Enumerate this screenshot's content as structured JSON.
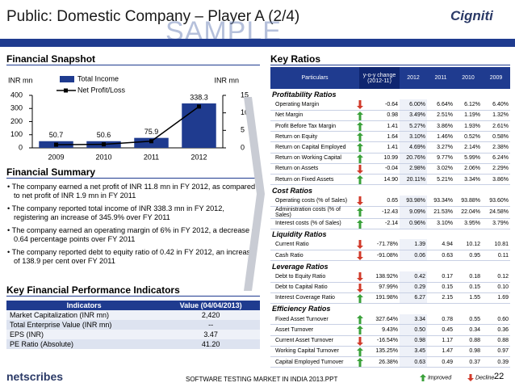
{
  "header": {
    "title": "Public: Domestic Company – Player A (2/4)",
    "watermark": "SAMPLE",
    "logo": "Cigniti"
  },
  "snapshot": {
    "title": "Financial Snapshot"
  },
  "chart_data": {
    "type": "bar",
    "categories": [
      "2009",
      "2010",
      "2011",
      "2012"
    ],
    "series": [
      {
        "name": "Total Income",
        "color": "#1f3b8f",
        "values": [
          50.7,
          50.6,
          75.9,
          338.3
        ]
      },
      {
        "name": "Net Profit/Loss",
        "color": "#000000",
        "type": "line",
        "axis": "y2",
        "values": [
          0.9,
          1.0,
          1.9,
          11.8
        ]
      }
    ],
    "ylabel": "INR mn",
    "y2label": "INR mn",
    "ylim": [
      0,
      400
    ],
    "yticks": [
      0,
      100,
      200,
      300,
      400
    ],
    "y2lim": [
      0,
      15
    ],
    "y2ticks": [
      0,
      5,
      10,
      15
    ],
    "legend": "top"
  },
  "summary": {
    "title": "Financial Summary",
    "bullets": [
      "The company earned a net profit of INR 11.8 mn in FY 2012, as compared to net profit of INR 1.9 mn in FY 2011",
      "The company reported total income of INR 338.3 mn in FY 2012, registering an increase of 345.9% over FY 2011",
      "The company earned an operating margin of 6% in FY 2012, a decrease of 0.64 percentage points over FY 2011",
      "The company reported debt to equity ratio of 0.42 in FY 2012, an increase of 138.9 per cent over FY 2011"
    ]
  },
  "kpi": {
    "title": "Key Financial Performance Indicators",
    "columns": [
      "Indicators",
      "Value (04/04/2013)"
    ],
    "rows": [
      [
        "Market Capitalization (INR mn)",
        "2,420"
      ],
      [
        "Total Enterprise Value (INR mn)",
        "--"
      ],
      [
        "EPS (INR)",
        "3.47"
      ],
      [
        "PE Ratio (Absolute)",
        "41.20"
      ]
    ]
  },
  "ratios": {
    "title": "Key Ratios",
    "columns": [
      "Particulars",
      "y-o-y change (2012-11)",
      "2012",
      "2011",
      "2010",
      "2009"
    ],
    "sections": [
      {
        "title": "Profitability Ratios",
        "rows": [
          {
            "name": "Operating Margin",
            "trend": "decline",
            "change": "-0.64",
            "values": [
              "6.00%",
              "6.64%",
              "6.12%",
              "6.40%"
            ]
          },
          {
            "name": "Net Margin",
            "trend": "improved",
            "change": "0.98",
            "values": [
              "3.49%",
              "2.51%",
              "1.19%",
              "1.32%"
            ]
          },
          {
            "name": "Profit Before Tax Margin",
            "trend": "improved",
            "change": "1.41",
            "values": [
              "5.27%",
              "3.86%",
              "1.93%",
              "2.61%"
            ]
          },
          {
            "name": "Return on Equity",
            "trend": "improved",
            "change": "1.64",
            "values": [
              "3.10%",
              "1.46%",
              "0.52%",
              "0.58%"
            ]
          },
          {
            "name": "Return on Capital Employed",
            "trend": "improved",
            "change": "1.41",
            "values": [
              "4.69%",
              "3.27%",
              "2.14%",
              "2.38%"
            ]
          },
          {
            "name": "Return on Working Capital",
            "trend": "improved",
            "change": "10.99",
            "values": [
              "20.76%",
              "9.77%",
              "5.99%",
              "6.24%"
            ]
          },
          {
            "name": "Return on Assets",
            "trend": "decline",
            "change": "-0.04",
            "values": [
              "2.98%",
              "3.02%",
              "2.06%",
              "2.29%"
            ]
          },
          {
            "name": "Return on Fixed Assets",
            "trend": "improved",
            "change": "14.90",
            "values": [
              "20.11%",
              "5.21%",
              "3.34%",
              "3.86%"
            ]
          }
        ]
      },
      {
        "title": "Cost Ratios",
        "rows": [
          {
            "name": "Operating costs (% of Sales)",
            "trend": "decline",
            "change": "0.65",
            "values": [
              "93.98%",
              "93.34%",
              "93.88%",
              "93.60%"
            ]
          },
          {
            "name": "Administration costs (% of Sales)",
            "trend": "improved",
            "change": "-12.43",
            "values": [
              "9.09%",
              "21.53%",
              "22.04%",
              "24.58%"
            ]
          },
          {
            "name": "Interest costs (% of Sales)",
            "trend": "improved",
            "change": "-2.14",
            "values": [
              "0.96%",
              "3.10%",
              "3.95%",
              "3.79%"
            ]
          }
        ]
      },
      {
        "title": "Liquidity Ratios",
        "rows": [
          {
            "name": "Current Ratio",
            "trend": "decline",
            "change": "-71.78%",
            "values": [
              "1.39",
              "4.94",
              "10.12",
              "10.81"
            ]
          },
          {
            "name": "Cash Ratio",
            "trend": "decline",
            "change": "-91.08%",
            "values": [
              "0.06",
              "0.63",
              "0.95",
              "0.11"
            ]
          }
        ]
      },
      {
        "title": "Leverage Ratios",
        "rows": [
          {
            "name": "Debt to Equity Ratio",
            "trend": "decline",
            "change": "138.92%",
            "values": [
              "0.42",
              "0.17",
              "0.18",
              "0.12"
            ]
          },
          {
            "name": "Debt to Capital Ratio",
            "trend": "decline",
            "change": "97.99%",
            "values": [
              "0.29",
              "0.15",
              "0.15",
              "0.10"
            ]
          },
          {
            "name": "Interest Coverage Ratio",
            "trend": "improved",
            "change": "191.98%",
            "values": [
              "6.27",
              "2.15",
              "1.55",
              "1.69"
            ]
          }
        ]
      },
      {
        "title": "Efficiency Ratios",
        "rows": [
          {
            "name": "Fixed Asset Turnover",
            "trend": "improved",
            "change": "327.64%",
            "values": [
              "3.34",
              "0.78",
              "0.55",
              "0.60"
            ]
          },
          {
            "name": "Asset Turnover",
            "trend": "improved",
            "change": "9.43%",
            "values": [
              "0.50",
              "0.45",
              "0.34",
              "0.36"
            ]
          },
          {
            "name": "Current Asset Turnover",
            "trend": "decline",
            "change": "-16.54%",
            "values": [
              "0.98",
              "1.17",
              "0.88",
              "0.88"
            ]
          },
          {
            "name": "Working Capital Turnover",
            "trend": "improved",
            "change": "135.25%",
            "values": [
              "3.45",
              "1.47",
              "0.98",
              "0.97"
            ]
          },
          {
            "name": "Capital Employed Turnover",
            "trend": "improved",
            "change": "26.38%",
            "values": [
              "0.63",
              "0.49",
              "0.37",
              "0.39"
            ]
          }
        ]
      }
    ],
    "legend": {
      "improved": "Improved",
      "decline": "Decline"
    }
  },
  "footer": {
    "logo": "netscribes",
    "text": "SOFTWARE TESTING MARKET IN INDIA 2013.PPT",
    "page": "22"
  }
}
